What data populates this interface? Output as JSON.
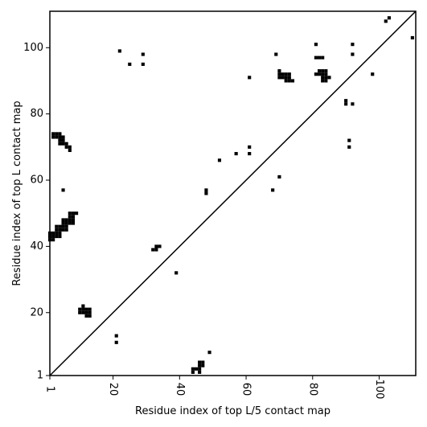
{
  "chart_data": {
    "type": "scatter",
    "xlabel": "Residue index of top L/5 contact map",
    "ylabel": "Residue index of top L contact map",
    "xlim": [
      1,
      111
    ],
    "ylim": [
      1,
      111
    ],
    "x_ticks": [
      1,
      20,
      40,
      60,
      80,
      100
    ],
    "y_ticks": [
      1,
      20,
      40,
      60,
      80,
      100
    ],
    "x_tick_labels": [
      "1",
      "20",
      "40",
      "60",
      "80",
      "100"
    ],
    "y_tick_labels": [
      "1",
      "20",
      "40",
      "60",
      "80",
      "100"
    ],
    "grid": false,
    "diagonal": true,
    "colors": {
      "marker": "#000000",
      "background": "#ffffff"
    },
    "series": [
      {
        "region": "above-diagonal",
        "points": [
          [
            22,
            99
          ],
          [
            25,
            95
          ],
          [
            29,
            98
          ],
          [
            29,
            95
          ],
          [
            52,
            66
          ],
          [
            57,
            68
          ],
          [
            61,
            91
          ],
          [
            61,
            70
          ],
          [
            61,
            68
          ],
          [
            68,
            57
          ],
          [
            69,
            98
          ],
          [
            70,
            61
          ],
          [
            70,
            93
          ],
          [
            70,
            92
          ],
          [
            70,
            91
          ],
          [
            71,
            92
          ],
          [
            71,
            91
          ],
          [
            72,
            92
          ],
          [
            72,
            91
          ],
          [
            72,
            90
          ],
          [
            73,
            92
          ],
          [
            73,
            91
          ],
          [
            73,
            90
          ],
          [
            74,
            90
          ],
          [
            81,
            101
          ],
          [
            81,
            97
          ],
          [
            81,
            92
          ],
          [
            82,
            97
          ],
          [
            82,
            93
          ],
          [
            82,
            92
          ],
          [
            83,
            97
          ],
          [
            83,
            93
          ],
          [
            83,
            92
          ],
          [
            83,
            91
          ],
          [
            83,
            90
          ],
          [
            84,
            93
          ],
          [
            84,
            92
          ],
          [
            84,
            91
          ],
          [
            84,
            90
          ],
          [
            85,
            91
          ],
          [
            90,
            84
          ],
          [
            90,
            83
          ],
          [
            91,
            72
          ],
          [
            91,
            70
          ],
          [
            92,
            101
          ],
          [
            92,
            98
          ],
          [
            92,
            83
          ],
          [
            98,
            92
          ],
          [
            102,
            108
          ],
          [
            103,
            109
          ],
          [
            110,
            103
          ]
        ]
      },
      {
        "region": "below-diagonal",
        "points": [
          [
            1,
            44
          ],
          [
            1,
            43
          ],
          [
            1,
            42
          ],
          [
            2,
            74
          ],
          [
            2,
            73
          ],
          [
            2,
            44
          ],
          [
            2,
            43
          ],
          [
            2,
            42
          ],
          [
            3,
            74
          ],
          [
            3,
            73
          ],
          [
            3,
            46
          ],
          [
            3,
            45
          ],
          [
            3,
            44
          ],
          [
            3,
            43
          ],
          [
            4,
            74
          ],
          [
            4,
            73
          ],
          [
            4,
            72
          ],
          [
            4,
            71
          ],
          [
            4,
            46
          ],
          [
            4,
            45
          ],
          [
            4,
            44
          ],
          [
            4,
            43
          ],
          [
            5,
            73
          ],
          [
            5,
            72
          ],
          [
            5,
            71
          ],
          [
            5,
            57
          ],
          [
            5,
            48
          ],
          [
            5,
            47
          ],
          [
            5,
            46
          ],
          [
            5,
            45
          ],
          [
            6,
            71
          ],
          [
            6,
            70
          ],
          [
            6,
            48
          ],
          [
            6,
            47
          ],
          [
            6,
            46
          ],
          [
            6,
            45
          ],
          [
            7,
            70
          ],
          [
            7,
            69
          ],
          [
            7,
            50
          ],
          [
            7,
            49
          ],
          [
            7,
            48
          ],
          [
            7,
            47
          ],
          [
            8,
            50
          ],
          [
            8,
            49
          ],
          [
            8,
            48
          ],
          [
            8,
            47
          ],
          [
            9,
            50
          ],
          [
            10,
            21
          ],
          [
            10,
            20
          ],
          [
            11,
            22
          ],
          [
            11,
            21
          ],
          [
            11,
            20
          ],
          [
            12,
            21
          ],
          [
            12,
            20
          ],
          [
            12,
            19
          ],
          [
            13,
            21
          ],
          [
            13,
            20
          ],
          [
            13,
            19
          ],
          [
            21,
            13
          ],
          [
            21,
            11
          ],
          [
            32,
            39
          ],
          [
            33,
            40
          ],
          [
            33,
            39
          ],
          [
            34,
            40
          ],
          [
            39,
            32
          ],
          [
            44,
            3
          ],
          [
            44,
            2
          ],
          [
            45,
            3
          ],
          [
            46,
            5
          ],
          [
            46,
            4
          ],
          [
            46,
            3
          ],
          [
            46,
            2
          ],
          [
            47,
            5
          ],
          [
            47,
            4
          ],
          [
            48,
            57
          ],
          [
            48,
            56
          ],
          [
            49,
            8
          ]
        ]
      }
    ]
  }
}
